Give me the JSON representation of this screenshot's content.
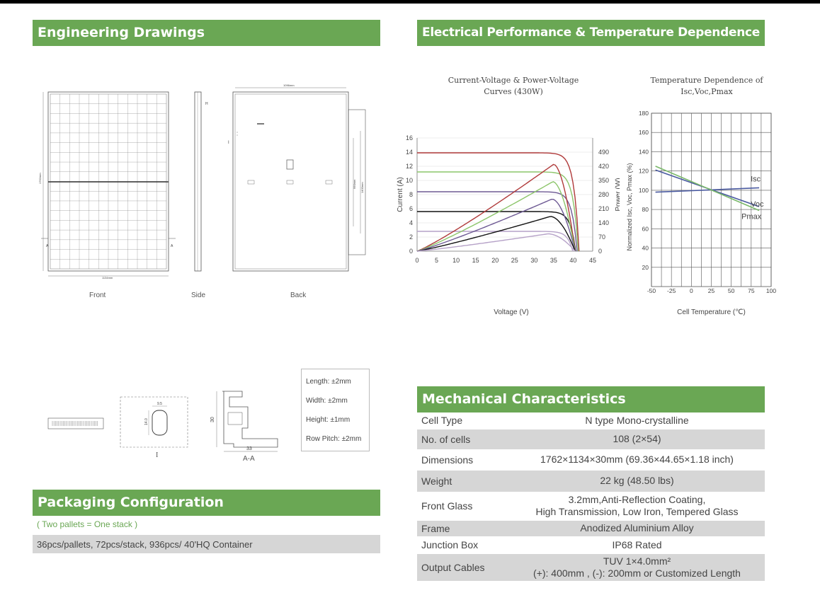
{
  "sections": {
    "engineering": "Engineering Drawings",
    "electrical": "Electrical Performance & Temperature Dependence",
    "packaging": "Packaging Configuration",
    "mechanical": "Mechanical Characteristics"
  },
  "drawings": {
    "front_label": "Front",
    "side_label": "Side",
    "back_label": "Back",
    "dim_width": "1134mm",
    "dim_height": "1762mm",
    "dim_back_width": "1096mm",
    "dim_mount1": "990mm",
    "dim_mount2": "1400mm",
    "mark_a": "A",
    "mark_h": "H",
    "mark_i": "I",
    "section_i_label": "I",
    "section_aa_label": "A-A",
    "hole_w": "9.5",
    "hole_h": "14.0",
    "frame_height": "30",
    "frame_width": "33"
  },
  "tolerances": [
    "Length: ±2mm",
    "Width: ±2mm",
    "Height: ±1mm",
    "Row Pitch: ±2mm"
  ],
  "packaging": {
    "note": "( Two pallets = One stack )",
    "detail": "36pcs/pallets, 72pcs/stack, 936pcs/ 40'HQ Container"
  },
  "mechanical": [
    {
      "key": "Cell  Type",
      "value": "N type Mono-crystalline"
    },
    {
      "key": "No. of cells",
      "value": "108 (2×54)"
    },
    {
      "key": "Dimensions",
      "value": "1762×1134×30mm (69.36×44.65×1.18 inch)"
    },
    {
      "key": "Weight",
      "value": "22 kg (48.50 lbs)"
    },
    {
      "key": "Front Glass",
      "value": "3.2mm,Anti-Reflection Coating,",
      "value2": "High Transmission, Low Iron, Tempered Glass"
    },
    {
      "key": "Frame",
      "value": "Anodized Aluminium Alloy"
    },
    {
      "key": "Junction Box",
      "value": "IP68 Rated"
    },
    {
      "key": "Output Cables",
      "value": "TUV  1×4.0mm²",
      "value2": "(+): 400mm , (-): 200mm or Customized Length"
    }
  ],
  "chart_data": [
    {
      "type": "line",
      "title": "Current-Voltage & Power-Voltage Curves (430W)",
      "xlabel": "Voltage (V)",
      "ylabel": "Current (A)",
      "y2label": "Power (W)",
      "xlim": [
        0,
        45
      ],
      "ylim": [
        0,
        16
      ],
      "y2lim": [
        0,
        560
      ],
      "xticks": [
        0,
        5,
        10,
        15,
        20,
        25,
        30,
        35,
        40,
        45
      ],
      "yticks": [
        0,
        2,
        4,
        6,
        8,
        10,
        12,
        14,
        16
      ],
      "y2ticks": [
        0,
        70,
        140,
        210,
        280,
        350,
        420,
        490
      ],
      "iv_series": [
        {
          "isc": 13.9,
          "voc": 41.5,
          "color": "#b03a3a"
        },
        {
          "isc": 11.2,
          "voc": 41.3,
          "color": "#8cc56a"
        },
        {
          "isc": 8.4,
          "voc": 41.0,
          "color": "#6e5a94"
        },
        {
          "isc": 5.6,
          "voc": 40.6,
          "color": "#111111"
        },
        {
          "isc": 2.8,
          "voc": 39.9,
          "color": "#b6a2c8"
        }
      ],
      "pv_series": [
        {
          "vmp": 35.0,
          "pmax": 430,
          "color": "#b03a3a"
        },
        {
          "vmp": 34.8,
          "pmax": 344,
          "color": "#8cc56a"
        },
        {
          "vmp": 34.6,
          "pmax": 258,
          "color": "#6e5a94"
        },
        {
          "vmp": 34.2,
          "pmax": 172,
          "color": "#111111"
        },
        {
          "vmp": 33.6,
          "pmax": 86,
          "color": "#b6a2c8"
        }
      ]
    },
    {
      "type": "line",
      "title": "Temperature Dependence of Isc,Voc,Pmax",
      "xlabel": "Cell Temperature (℃)",
      "ylabel": "Normalized Isc, Voc, Pmax (%)",
      "xlim": [
        -50,
        100
      ],
      "ylim": [
        0,
        180
      ],
      "xticks": [
        -50,
        -25,
        0,
        25,
        50,
        75,
        100
      ],
      "yticks": [
        20,
        40,
        60,
        80,
        100,
        120,
        140,
        160,
        180
      ],
      "series": [
        {
          "name": "Isc",
          "x": [
            -45,
            85
          ],
          "y": [
            98,
            102.5
          ],
          "color": "#4a5aa0"
        },
        {
          "name": "Voc",
          "x": [
            -45,
            85
          ],
          "y": [
            121,
            83
          ],
          "color": "#4a5aa0"
        },
        {
          "name": "Pmax",
          "x": [
            -45,
            85
          ],
          "y": [
            125,
            79
          ],
          "color": "#7ab86a"
        }
      ]
    }
  ]
}
